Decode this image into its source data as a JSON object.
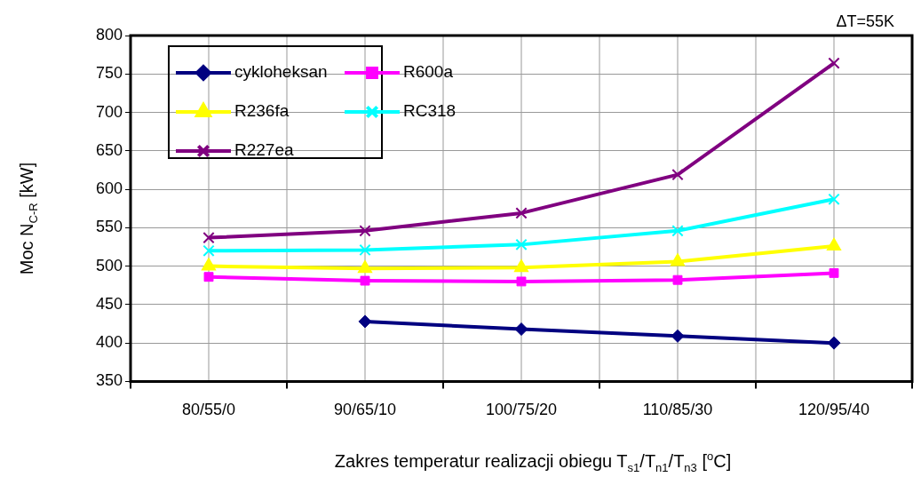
{
  "chart_data": {
    "type": "line",
    "xlabel": "Zakres temperatur realizacji obiegu T$_{s1}$/T$_{n1}$/T$_{n3}$  [$^{o}$C]",
    "ylabel": "Moc N$_{C-R}$  [kW]",
    "annotations": [
      "ΔT=55K"
    ],
    "categories": [
      "80/55/0",
      "90/65/10",
      "100/75/20",
      "110/85/30",
      "120/95/40"
    ],
    "series": [
      {
        "name": "cykloheksan",
        "color": "#000080",
        "marker": "diamond",
        "values": [
          null,
          428,
          418,
          409,
          400
        ]
      },
      {
        "name": "R600a",
        "color": "#ff00ff",
        "marker": "square",
        "values": [
          486,
          481,
          480,
          482,
          491
        ]
      },
      {
        "name": "R236fa",
        "color": "#ffff00",
        "marker": "triangle",
        "values": [
          500,
          497,
          498,
          506,
          526
        ]
      },
      {
        "name": "RC318",
        "color": "#00ffff",
        "marker": "cross",
        "values": [
          520,
          521,
          528,
          546,
          587
        ]
      },
      {
        "name": "R227ea",
        "color": "#800080",
        "marker": "cross",
        "values": [
          537,
          546,
          569,
          619,
          764
        ]
      }
    ],
    "ylim": [
      350,
      800
    ],
    "yticks": [
      350,
      400,
      450,
      500,
      550,
      600,
      650,
      700,
      750,
      800
    ],
    "grid": true,
    "legend": "top left",
    "line_style": "solid"
  }
}
